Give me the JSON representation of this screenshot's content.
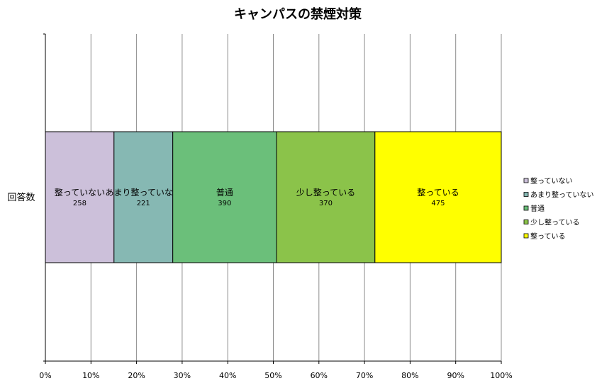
{
  "chart_data": {
    "type": "bar",
    "orientation": "horizontal",
    "stacking": "percent",
    "title": "キャンパスの禁煙対策",
    "categories": [
      "回答数"
    ],
    "series": [
      {
        "name": "整っていない",
        "values": [
          258
        ],
        "color": "#ccc0da"
      },
      {
        "name": "あまり整っていない",
        "values": [
          221
        ],
        "color": "#86b8b3"
      },
      {
        "name": "普通",
        "values": [
          390
        ],
        "color": "#6bbf7a"
      },
      {
        "name": "少し整っている",
        "values": [
          370
        ],
        "color": "#8bc34a"
      },
      {
        "name": "整っている",
        "values": [
          475
        ],
        "color": "#ffff00"
      }
    ],
    "x_ticks": [
      "0%",
      "10%",
      "20%",
      "30%",
      "40%",
      "50%",
      "60%",
      "70%",
      "80%",
      "90%",
      "100%"
    ],
    "xlim": [
      0,
      100
    ],
    "grid": true,
    "legend_position": "right"
  }
}
